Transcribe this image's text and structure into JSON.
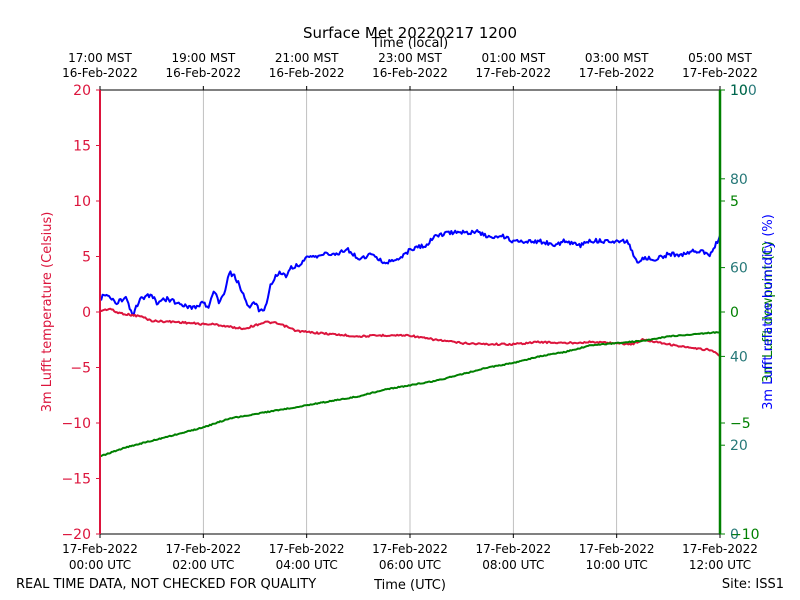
{
  "title": "Surface Met 20220217 1200",
  "footer": {
    "left_note": "REAL TIME DATA, NOT CHECKED FOR QUALITY",
    "site": "Site: ISS1"
  },
  "chart_data": {
    "type": "line",
    "x_axis_bottom": {
      "label": "Time (UTC)",
      "ticks": [
        {
          "t": 0,
          "date": "17-Feb-2022",
          "time": "00:00 UTC"
        },
        {
          "t": 2,
          "date": "17-Feb-2022",
          "time": "02:00 UTC"
        },
        {
          "t": 4,
          "date": "17-Feb-2022",
          "time": "04:00 UTC"
        },
        {
          "t": 6,
          "date": "17-Feb-2022",
          "time": "06:00 UTC"
        },
        {
          "t": 8,
          "date": "17-Feb-2022",
          "time": "08:00 UTC"
        },
        {
          "t": 10,
          "date": "17-Feb-2022",
          "time": "10:00 UTC"
        },
        {
          "t": 12,
          "date": "17-Feb-2022",
          "time": "12:00 UTC"
        }
      ],
      "range": [
        0,
        12
      ]
    },
    "x_axis_top": {
      "label": "Time (local)",
      "ticks": [
        {
          "t": 0,
          "time": "17:00 MST",
          "date": "16-Feb-2022"
        },
        {
          "t": 2,
          "time": "19:00 MST",
          "date": "16-Feb-2022"
        },
        {
          "t": 4,
          "time": "21:00 MST",
          "date": "16-Feb-2022"
        },
        {
          "t": 6,
          "time": "23:00 MST",
          "date": "16-Feb-2022"
        },
        {
          "t": 8,
          "time": "01:00 MST",
          "date": "17-Feb-2022"
        },
        {
          "t": 10,
          "time": "03:00 MST",
          "date": "17-Feb-2022"
        },
        {
          "t": 12,
          "time": "05:00 MST",
          "date": "17-Feb-2022"
        }
      ]
    },
    "y_left": {
      "label": "3m Lufft temperature (Celsius)",
      "range": [
        -20,
        20
      ],
      "ticks": [
        "20",
        "15",
        "10",
        "5",
        "0",
        "−5",
        "−10",
        "−15",
        "−20"
      ],
      "tick_values": [
        20,
        15,
        10,
        5,
        0,
        -5,
        -10,
        -15,
        -20
      ],
      "color": "#dc143c"
    },
    "y_right_rh": {
      "label": "3m Lufft relative humidity (%)",
      "range": [
        0,
        100
      ],
      "ticks": [
        "100",
        "80",
        "60",
        "40",
        "20",
        "0"
      ],
      "tick_values": [
        100,
        80,
        60,
        40,
        20,
        0
      ],
      "color": "#0000ff"
    },
    "y_right_dewpoint": {
      "label": "3m Lufft dewpoint (C)",
      "range": [
        -10,
        10
      ],
      "ticks": [
        "10",
        "5",
        "0",
        "−5",
        "−10"
      ],
      "tick_values": [
        10,
        5,
        0,
        -5,
        -10
      ],
      "color": "#008000"
    },
    "grid": {
      "vertical": true,
      "horizontal": false
    },
    "series": [
      {
        "color": "#dc143c",
        "axis": "left",
        "x": [
          0,
          0.2,
          0.3,
          0.5,
          0.8,
          1,
          1.5,
          2,
          2.2,
          2.6,
          2.8,
          3,
          3.2,
          3.4,
          3.6,
          3.8,
          4,
          4.5,
          5,
          5.5,
          6,
          6.2,
          6.5,
          7,
          7.5,
          8,
          8.5,
          9,
          9.5,
          10,
          10.3,
          10.5,
          10.8,
          11,
          11.5,
          11.8,
          12
        ],
        "y": [
          0.1,
          0.3,
          0,
          -0.2,
          -0.4,
          -0.8,
          -0.9,
          -1.1,
          -1.1,
          -1.4,
          -1.5,
          -1.2,
          -0.9,
          -1.0,
          -1.3,
          -1.7,
          -1.8,
          -2.0,
          -2.2,
          -2.1,
          -2.1,
          -2.3,
          -2.5,
          -2.8,
          -2.9,
          -2.9,
          -2.7,
          -2.8,
          -2.7,
          -2.8,
          -2.9,
          -2.5,
          -2.7,
          -2.9,
          -3.3,
          -3.4,
          -3.9
        ]
      },
      {
        "color": "#0000ff",
        "axis": "right_rh",
        "x": [
          0,
          0.1,
          0.3,
          0.5,
          0.6,
          0.65,
          0.7,
          0.8,
          1,
          1.1,
          1.3,
          1.5,
          1.8,
          2,
          2.1,
          2.2,
          2.3,
          2.4,
          2.5,
          2.6,
          2.7,
          2.8,
          2.9,
          3,
          3.1,
          3.2,
          3.3,
          3.4,
          3.5,
          3.6,
          3.7,
          3.9,
          4,
          4.3,
          4.5,
          4.8,
          5,
          5.3,
          5.5,
          5.8,
          6,
          6.3,
          6.5,
          6.8,
          7,
          7.3,
          7.5,
          7.8,
          8,
          8.3,
          8.5,
          8.8,
          9,
          9.3,
          9.5,
          9.8,
          10,
          10.2,
          10.4,
          10.5,
          10.8,
          11,
          11.3,
          11.5,
          11.8,
          12
        ],
        "y": [
          53,
          54,
          52,
          53,
          50,
          49.5,
          51,
          53,
          54,
          52,
          53,
          52,
          51,
          52,
          51,
          55,
          52,
          54,
          59,
          58,
          56,
          53,
          51,
          52,
          50,
          51,
          56,
          58,
          59,
          58,
          60,
          61,
          62,
          63,
          63,
          64,
          62,
          63,
          61,
          62,
          64,
          65,
          67,
          68,
          68,
          68,
          67,
          67,
          66,
          66,
          66,
          65,
          66,
          65,
          66,
          66,
          66,
          66,
          61,
          62,
          62,
          63,
          63,
          64,
          63,
          67
        ]
      },
      {
        "color": "#008000",
        "axis": "right_dewpoint",
        "x": [
          0,
          0.5,
          1,
          1.5,
          2,
          2.5,
          3,
          3.5,
          4,
          4.5,
          5,
          5.5,
          6,
          6.5,
          7,
          7.5,
          8,
          8.5,
          9,
          9.5,
          10,
          10.5,
          11,
          11.5,
          12
        ],
        "y": [
          -6.5,
          -6.1,
          -5.8,
          -5.5,
          -5.2,
          -4.8,
          -4.6,
          -4.4,
          -4.2,
          -4.0,
          -3.8,
          -3.5,
          -3.3,
          -3.1,
          -2.8,
          -2.5,
          -2.3,
          -2.0,
          -1.8,
          -1.5,
          -1.4,
          -1.3,
          -1.1,
          -1.0,
          -0.9
        ]
      }
    ]
  }
}
